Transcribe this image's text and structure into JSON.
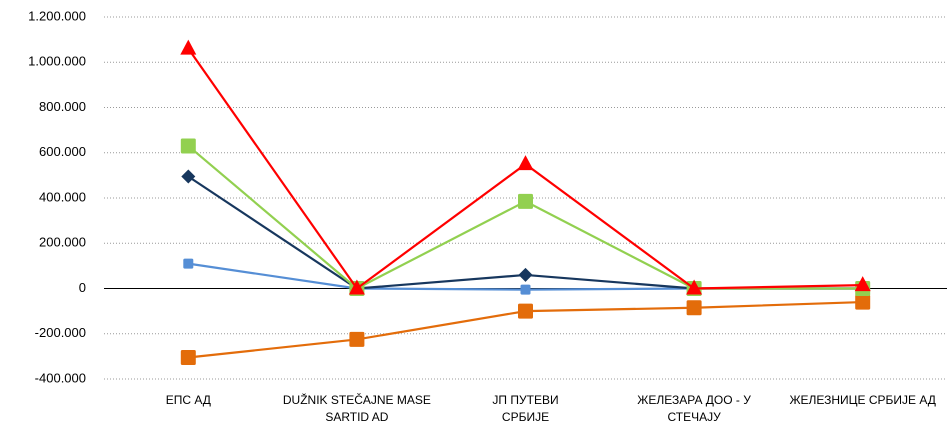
{
  "chart_data": {
    "type": "line",
    "categories": [
      "ЕПС АД",
      "DUŽNIK STEČAJNE MASE SARTID AD",
      "ЈП ПУТЕВИ СРБИЈЕ",
      "ЖЕЛЕЗАРА ДОО - У СТЕЧАЈУ",
      "ЖЕЛЕЗНИЦЕ СРБИЈЕ АД"
    ],
    "series": [
      {
        "color": "#e36c0a",
        "marker": "square",
        "values": [
          -305000,
          -225000,
          -100000,
          -85000,
          -60000
        ]
      },
      {
        "color": "#558ed5",
        "marker": "square-small",
        "values": [
          110000,
          0,
          -5000,
          0,
          0
        ]
      },
      {
        "color": "#17375e",
        "marker": "diamond",
        "values": [
          495000,
          0,
          60000,
          0,
          0
        ]
      },
      {
        "color": "#92d050",
        "marker": "square",
        "values": [
          630000,
          0,
          385000,
          0,
          0
        ]
      },
      {
        "color": "#ff0000",
        "marker": "triangle",
        "values": [
          1060000,
          0,
          550000,
          0,
          15000
        ]
      }
    ],
    "ylim": [
      -400000,
      1200000
    ],
    "yticks": [
      {
        "value": -400000,
        "label": "-400.000"
      },
      {
        "value": -200000,
        "label": "-200.000"
      },
      0,
      {
        "value": 200000,
        "label": "200.000"
      },
      {
        "value": 400000,
        "label": "400.000"
      },
      {
        "value": 600000,
        "label": "600.000"
      },
      {
        "value": 800000,
        "label": "800.000"
      },
      {
        "value": 1000000,
        "label": "1.000.000"
      },
      {
        "value": 1200000,
        "label": "1.200.000"
      }
    ],
    "grid": true
  }
}
